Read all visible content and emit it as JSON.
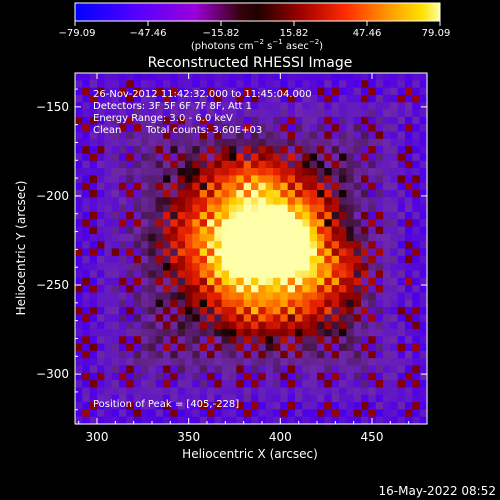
{
  "colorbar": {
    "ticks": [
      "-79.09",
      "-47.46",
      "-15.82",
      "15.82",
      "47.46",
      "79.09"
    ],
    "tick_values": [
      -79.09,
      -47.46,
      -15.82,
      15.82,
      47.46,
      79.09
    ],
    "range": [
      -79.09,
      79.09
    ],
    "colormap": [
      "#0000ff",
      "#5a00ff",
      "#9a00d8",
      "#2a0000",
      "#800000",
      "#c00000",
      "#ff2a00",
      "#ff8c00",
      "#ffd000",
      "#ffff80"
    ],
    "unit_line1": "(photons cm",
    "unit_exp1": "−2",
    "unit_line2": " s",
    "unit_exp2": "−1",
    "unit_line3": " asec",
    "unit_exp3": "−2",
    "unit_close": ")"
  },
  "chart_data": {
    "type": "heatmap",
    "title": "Reconstructed RHESSI Image",
    "xlabel": "Heliocentric X (arcsec)",
    "ylabel": "Heliocentric Y (arcsec)",
    "xlim": [
      288,
      480
    ],
    "ylim": [
      -328,
      -131
    ],
    "xticks": [
      300,
      350,
      400,
      450
    ],
    "yticks": [
      -150,
      -200,
      -250,
      -300
    ],
    "peak": [
      405,
      -228
    ],
    "vmin": -79.09,
    "vmax": 79.09
  },
  "info": {
    "line1": "26-Nov-2012 11:42:32.000 to 11:45:04.000",
    "line2": "Detectors: 3F 5F 6F 7F 8F, Att 1",
    "line3": "Energy Range: 3.0 - 6.0 keV",
    "line4a": "Clean",
    "line4b": "Total counts: 3.60E+03",
    "peak_label": "Position of Peak = [405,-228]"
  },
  "footer": {
    "date": "16-May-2022 08:52"
  }
}
